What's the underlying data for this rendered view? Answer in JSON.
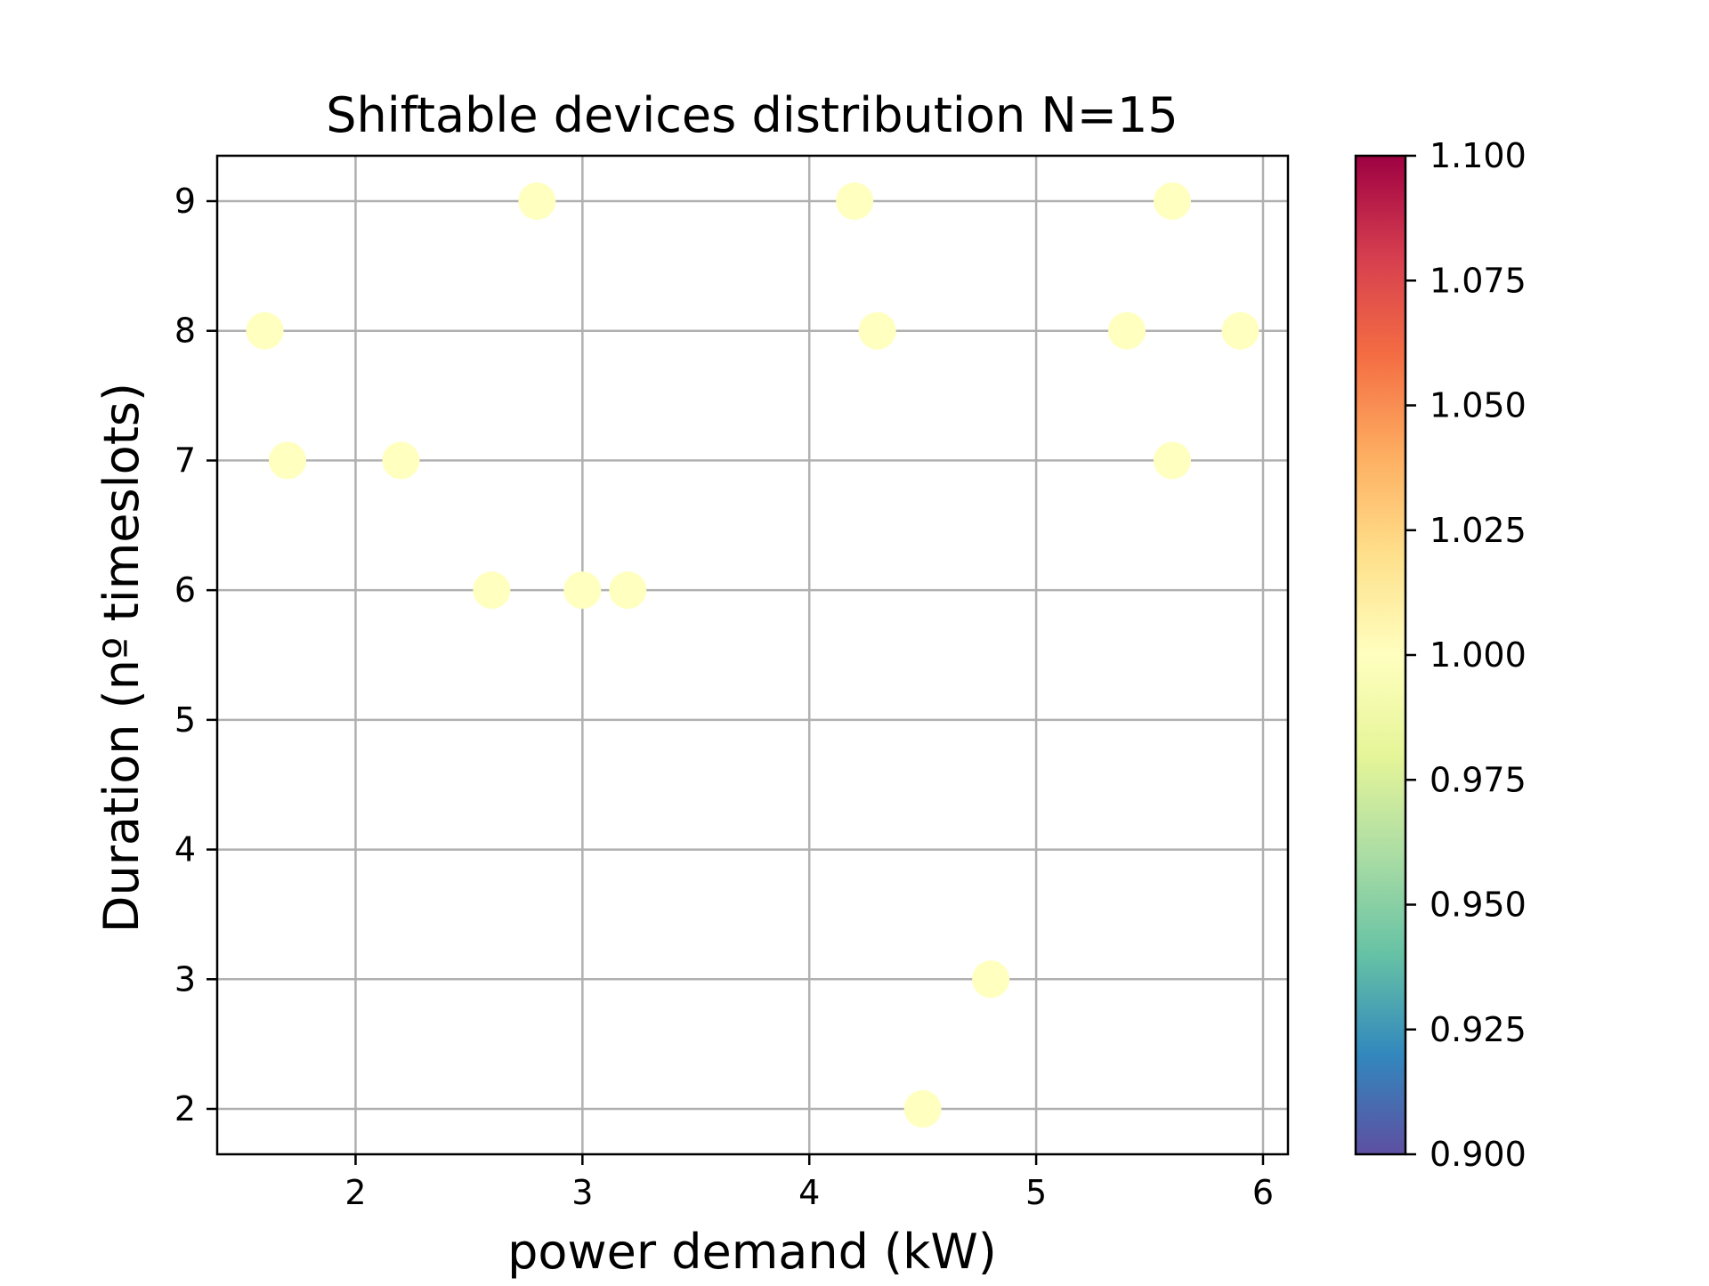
{
  "chart_data": {
    "type": "scatter",
    "title": "Shiftable devices distribution N=15",
    "xlabel": "power demand (kW)",
    "ylabel": "Duration (nº timeslots)",
    "xlim": [
      1.39,
      6.11
    ],
    "ylim": [
      1.65,
      9.35
    ],
    "xticks": [
      2,
      3,
      4,
      5,
      6
    ],
    "yticks": [
      2,
      3,
      4,
      5,
      6,
      7,
      8,
      9
    ],
    "grid": true,
    "point_color": "#ffffbf",
    "points": [
      {
        "x": 1.6,
        "y": 8
      },
      {
        "x": 1.7,
        "y": 7
      },
      {
        "x": 2.2,
        "y": 7
      },
      {
        "x": 2.6,
        "y": 6
      },
      {
        "x": 2.8,
        "y": 9
      },
      {
        "x": 3.0,
        "y": 6
      },
      {
        "x": 3.2,
        "y": 6
      },
      {
        "x": 4.2,
        "y": 9
      },
      {
        "x": 4.3,
        "y": 8
      },
      {
        "x": 4.5,
        "y": 2
      },
      {
        "x": 4.8,
        "y": 3
      },
      {
        "x": 5.4,
        "y": 8
      },
      {
        "x": 5.6,
        "y": 9
      },
      {
        "x": 5.6,
        "y": 7
      },
      {
        "x": 5.9,
        "y": 8
      }
    ],
    "colorbar": {
      "colormap": "Spectral_r",
      "range": [
        0.9,
        1.1
      ],
      "ticks": [
        "0.900",
        "0.925",
        "0.950",
        "0.975",
        "1.000",
        "1.025",
        "1.050",
        "1.075",
        "1.100"
      ],
      "colors": [
        "#5e4fa2",
        "#3288bd",
        "#66c2a5",
        "#abdda4",
        "#e6f598",
        "#ffffbf",
        "#fee08b",
        "#fdae61",
        "#f46d43",
        "#d53e4f",
        "#9e0142"
      ]
    }
  }
}
